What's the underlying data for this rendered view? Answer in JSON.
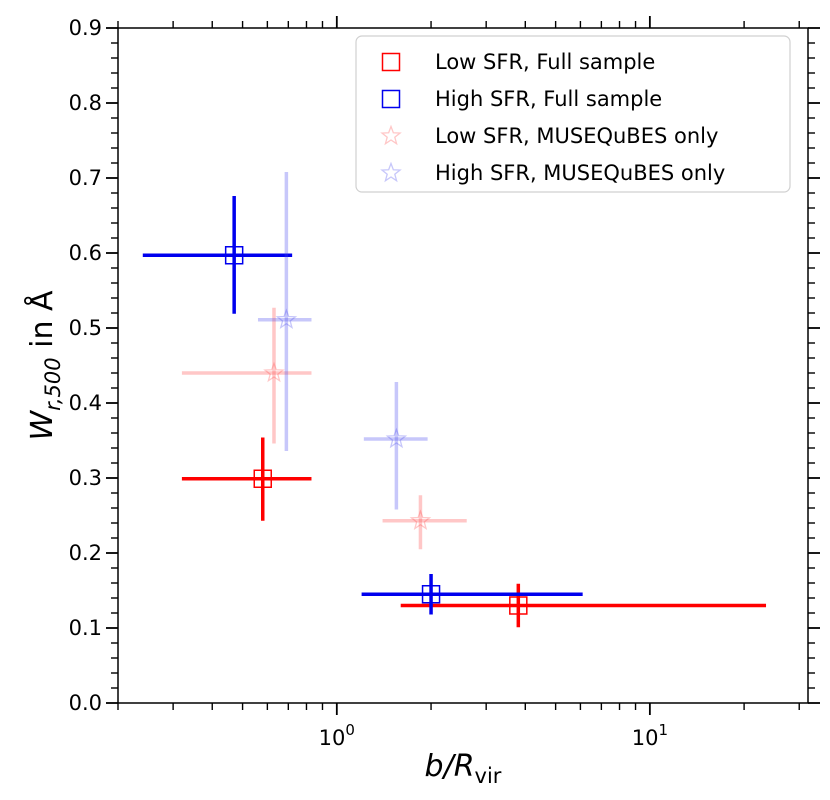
{
  "chart_data": {
    "type": "scatter",
    "title": "",
    "xscale": "log",
    "xlim": [
      0.2,
      32
    ],
    "ylim": [
      0.0,
      0.9
    ],
    "grid": false,
    "xlabel": {
      "italic": "b/R",
      "sub": "vir"
    },
    "ylabel": {
      "italic": "W",
      "sub": "r,500",
      "rest": " in Å"
    },
    "x_tick_labels": [
      {
        "value": 1,
        "base": "10",
        "exp": "0"
      },
      {
        "value": 10,
        "base": "10",
        "exp": "1"
      }
    ],
    "y_ticks": [
      0.0,
      0.1,
      0.2,
      0.3,
      0.4,
      0.5,
      0.6,
      0.7,
      0.8,
      0.9
    ],
    "y_tick_labels": [
      "0.0",
      "0.1",
      "0.2",
      "0.3",
      "0.4",
      "0.5",
      "0.6",
      "0.7",
      "0.8",
      "0.9"
    ],
    "legend_position": "top-right",
    "series": [
      {
        "name": "Low SFR, Full sample",
        "marker": "square",
        "color": "#ff0000",
        "alpha": 1.0,
        "points": [
          {
            "x": 0.58,
            "y": 0.299,
            "xlo": 0.32,
            "xhi": 0.83,
            "ylo": 0.243,
            "yhi": 0.354
          },
          {
            "x": 3.8,
            "y": 0.13,
            "xlo": 1.6,
            "xhi": 23.5,
            "ylo": 0.101,
            "yhi": 0.159
          }
        ]
      },
      {
        "name": "High SFR, Full sample",
        "marker": "square",
        "color": "#0000ee",
        "alpha": 1.0,
        "points": [
          {
            "x": 0.47,
            "y": 0.597,
            "xlo": 0.24,
            "xhi": 0.72,
            "ylo": 0.519,
            "yhi": 0.676
          },
          {
            "x": 2.0,
            "y": 0.145,
            "xlo": 1.2,
            "xhi": 6.1,
            "ylo": 0.118,
            "yhi": 0.172
          }
        ]
      },
      {
        "name": "Low SFR, MUSEQuBES only",
        "marker": "star",
        "color": "#ff4444",
        "alpha": 0.3,
        "points": [
          {
            "x": 0.63,
            "y": 0.44,
            "xlo": 0.32,
            "xhi": 0.83,
            "ylo": 0.346,
            "yhi": 0.527
          },
          {
            "x": 1.85,
            "y": 0.243,
            "xlo": 1.4,
            "xhi": 2.6,
            "ylo": 0.205,
            "yhi": 0.277
          }
        ]
      },
      {
        "name": "High SFR, MUSEQuBES only",
        "marker": "star",
        "color": "#4444ee",
        "alpha": 0.3,
        "points": [
          {
            "x": 0.69,
            "y": 0.511,
            "xlo": 0.56,
            "xhi": 0.83,
            "ylo": 0.336,
            "yhi": 0.708
          },
          {
            "x": 1.55,
            "y": 0.352,
            "xlo": 1.22,
            "xhi": 1.95,
            "ylo": 0.258,
            "yhi": 0.428
          }
        ]
      }
    ]
  }
}
